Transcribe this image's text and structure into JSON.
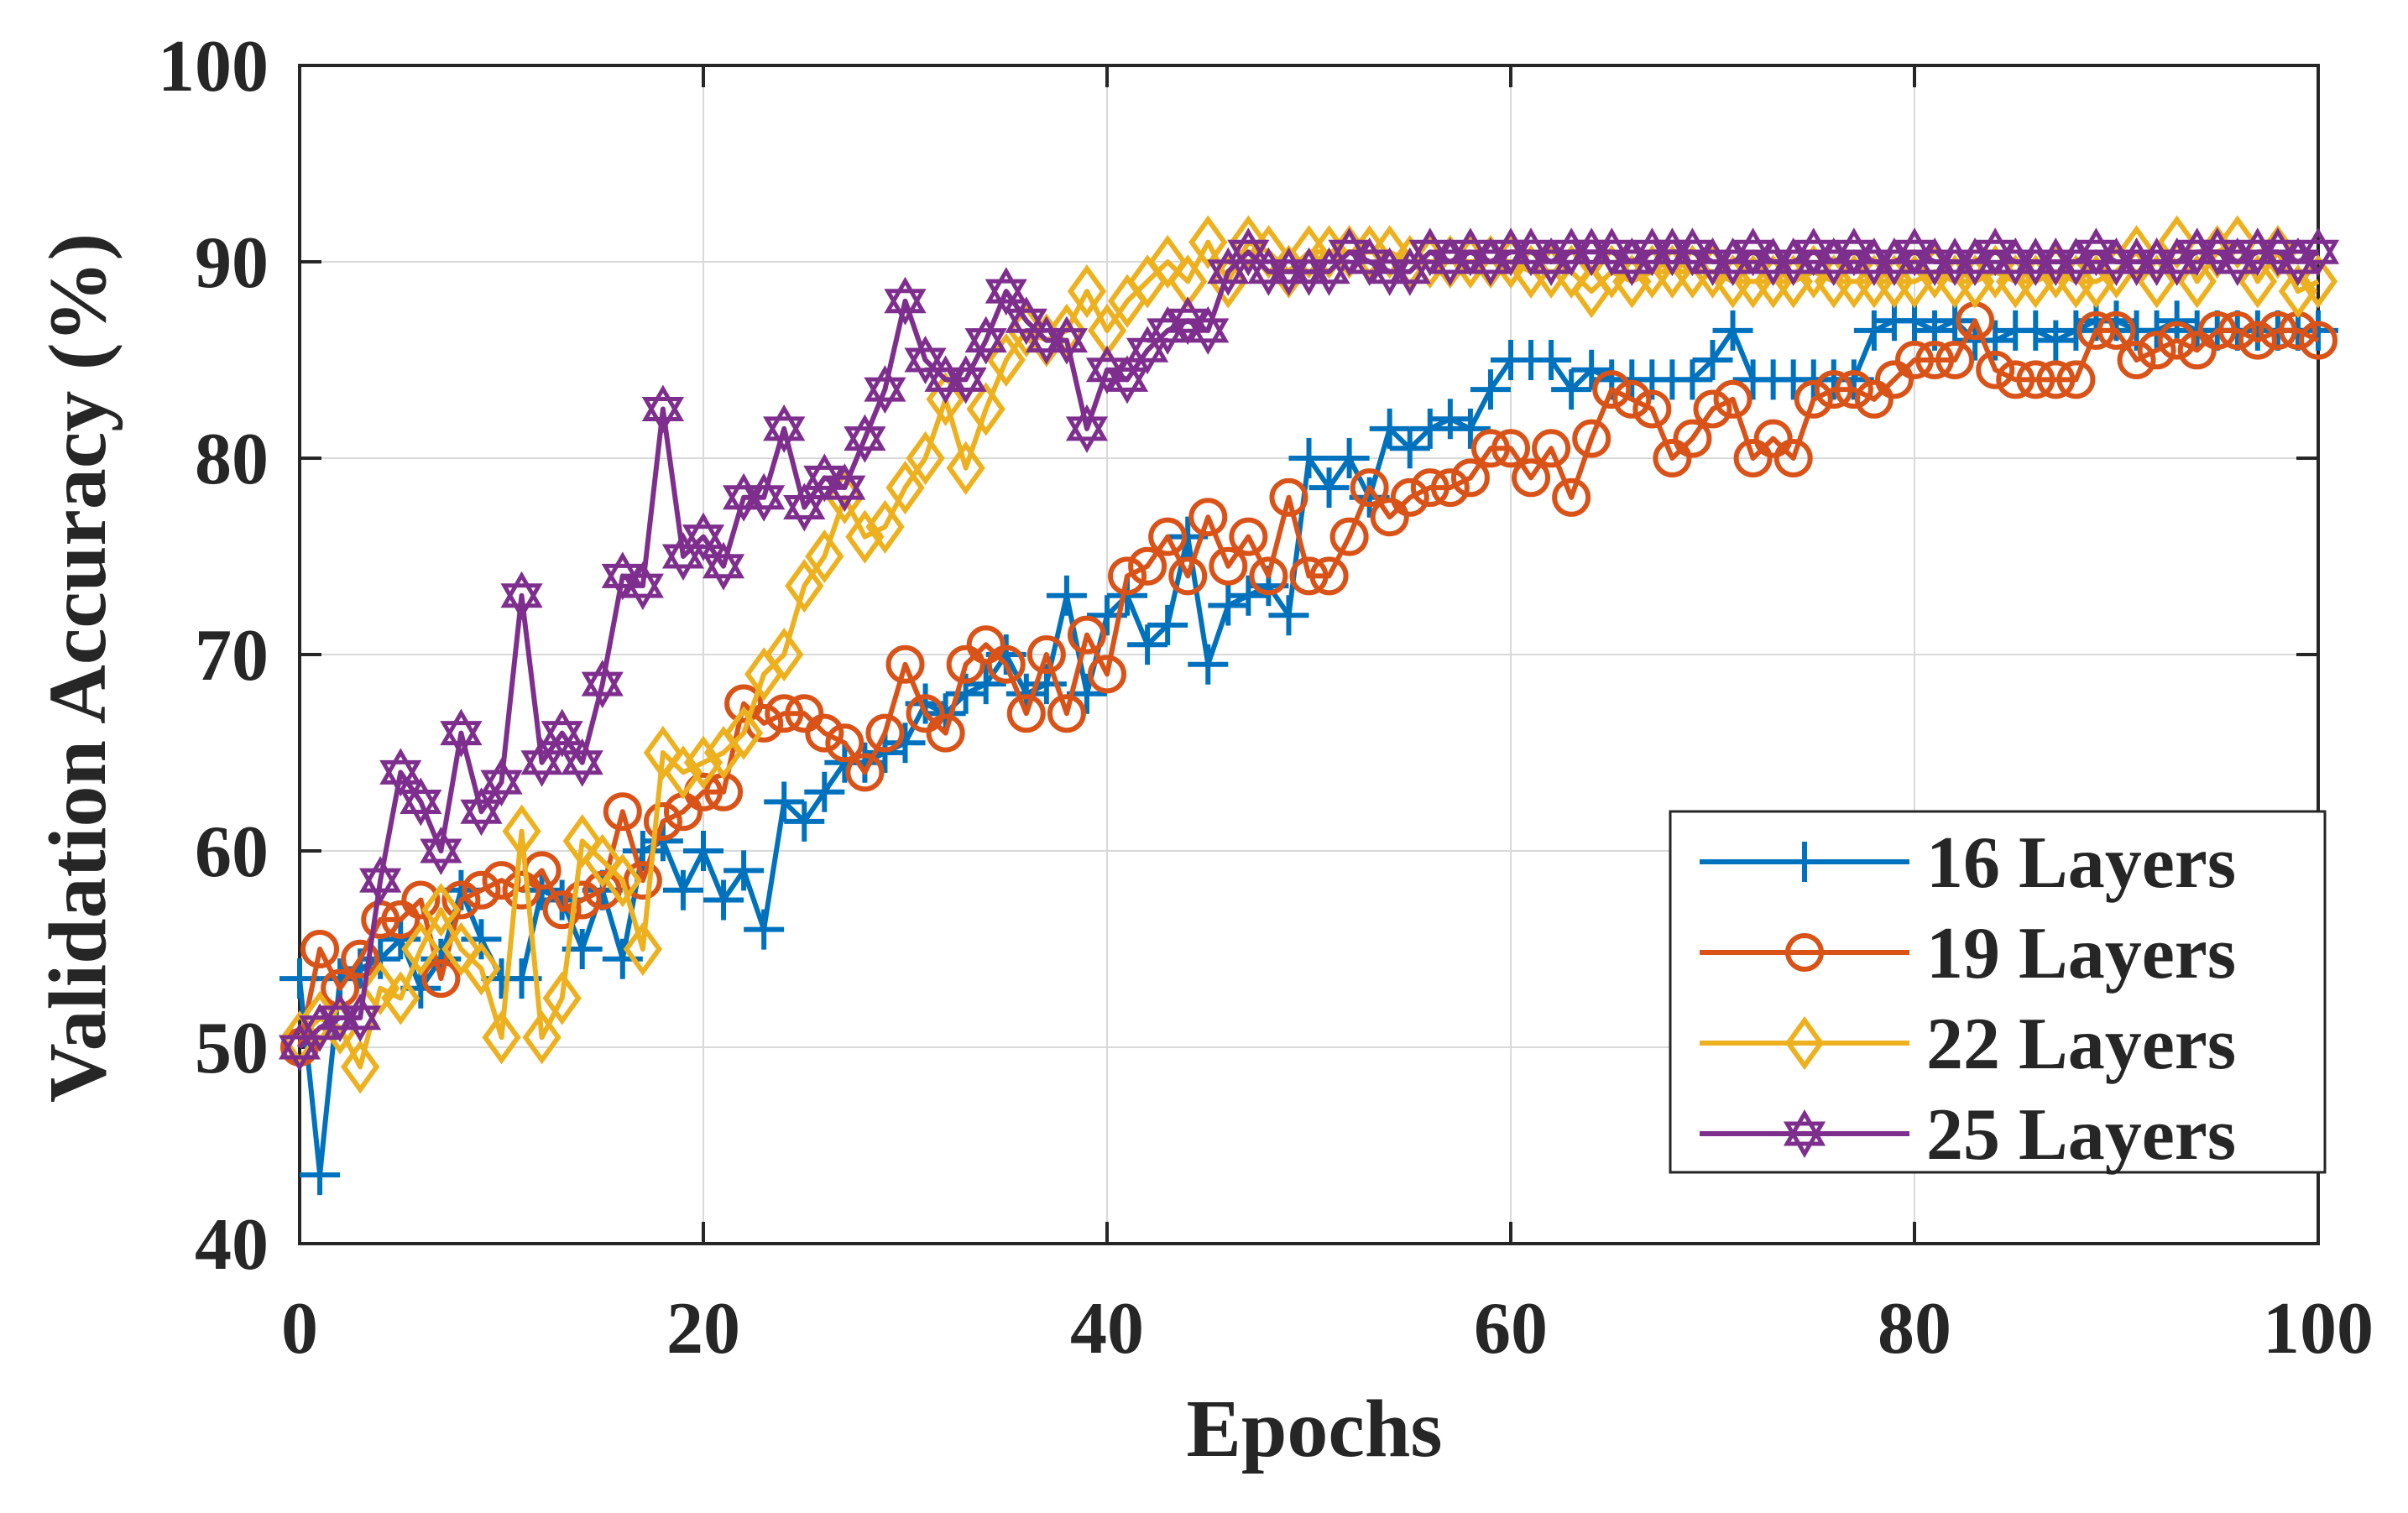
{
  "chart_data": {
    "type": "line",
    "title": "",
    "xlabel": "Epochs",
    "ylabel": "Validation Accuracy (%)",
    "xlim": [
      0,
      100
    ],
    "ylim": [
      40,
      100
    ],
    "xticks": [
      "0",
      "20",
      "40",
      "60",
      "80",
      "100"
    ],
    "yticks": [
      "40",
      "50",
      "60",
      "70",
      "80",
      "90",
      "100"
    ],
    "grid": true,
    "legend_position": "bottom-right",
    "x": [
      0,
      1,
      2,
      3,
      4,
      5,
      6,
      7,
      8,
      9,
      10,
      11,
      12,
      13,
      14,
      15,
      16,
      17,
      18,
      19,
      20,
      21,
      22,
      23,
      24,
      25,
      26,
      27,
      28,
      29,
      30,
      31,
      32,
      33,
      34,
      35,
      36,
      37,
      38,
      39,
      40,
      41,
      42,
      43,
      44,
      45,
      46,
      47,
      48,
      49,
      50,
      51,
      52,
      53,
      54,
      55,
      56,
      57,
      58,
      59,
      60,
      61,
      62,
      63,
      64,
      65,
      66,
      67,
      68,
      69,
      70,
      71,
      72,
      73,
      74,
      75,
      76,
      77,
      78,
      79,
      80,
      81,
      82,
      83,
      84,
      85,
      86,
      87,
      88,
      89,
      90,
      91,
      92,
      93,
      94,
      95,
      96,
      97,
      98,
      99,
      100
    ],
    "series": [
      {
        "name": "16 Layers",
        "color": "#0072BD",
        "marker": "plus",
        "values": [
          53.5,
          43.5,
          53.5,
          54.0,
          54.5,
          55.5,
          53.0,
          54.5,
          58.0,
          55.5,
          53.5,
          53.5,
          58.0,
          57.5,
          55.0,
          58.0,
          54.5,
          60.0,
          60.5,
          58.0,
          60.0,
          57.5,
          59.0,
          56.0,
          62.5,
          61.5,
          63.0,
          64.5,
          64.5,
          65.0,
          65.5,
          67.5,
          67.0,
          68.0,
          68.5,
          70.0,
          68.0,
          68.5,
          73.0,
          68.0,
          72.0,
          73.0,
          70.5,
          71.5,
          76.0,
          69.5,
          72.5,
          73.0,
          73.5,
          72.0,
          80.0,
          78.5,
          80.0,
          78.0,
          81.5,
          80.5,
          81.5,
          82.0,
          81.5,
          83.5,
          85.0,
          85.0,
          85.0,
          83.5,
          84.5,
          84.0,
          84.0,
          84.0,
          84.0,
          84.0,
          85.0,
          86.5,
          84.0,
          84.0,
          84.0,
          84.0,
          84.0,
          84.0,
          86.5,
          87.0,
          87.0,
          86.5,
          87.0,
          86.0,
          86.0,
          86.5,
          86.5,
          86.0,
          86.5,
          87.0,
          87.0,
          86.5,
          86.5,
          87.0,
          86.5,
          86.5,
          86.5,
          86.5,
          86.5,
          86.5,
          86.5
        ]
      },
      {
        "name": "19 Layers",
        "color": "#D95319",
        "marker": "circle",
        "values": [
          50.0,
          55.0,
          53.0,
          54.5,
          56.5,
          56.5,
          57.5,
          53.5,
          57.5,
          58.0,
          58.5,
          58.0,
          59.0,
          57.0,
          57.5,
          58.0,
          62.0,
          58.5,
          61.5,
          62.0,
          63.0,
          63.0,
          67.5,
          66.5,
          67.0,
          67.0,
          66.0,
          65.5,
          64.0,
          66.0,
          69.5,
          67.0,
          66.0,
          69.5,
          70.5,
          69.5,
          67.0,
          70.0,
          67.0,
          71.0,
          69.0,
          74.0,
          74.5,
          76.0,
          74.0,
          77.0,
          74.5,
          76.0,
          74.0,
          78.0,
          74.0,
          74.0,
          76.0,
          78.5,
          77.0,
          78.0,
          78.5,
          78.5,
          79.0,
          80.5,
          80.5,
          79.0,
          80.5,
          78.0,
          81.0,
          83.5,
          83.0,
          82.5,
          80.0,
          81.0,
          82.5,
          83.0,
          80.0,
          81.0,
          80.0,
          83.0,
          83.5,
          83.5,
          83.0,
          84.0,
          85.0,
          85.0,
          85.0,
          87.0,
          84.5,
          84.0,
          84.0,
          84.0,
          84.0,
          86.5,
          86.5,
          85.0,
          85.5,
          86.0,
          85.5,
          86.5,
          86.5,
          86.0,
          86.5,
          86.5,
          86.0
        ]
      },
      {
        "name": "22 Layers",
        "color": "#EDB120",
        "marker": "diamond",
        "values": [
          50.5,
          51.5,
          51.0,
          49.0,
          53.0,
          52.5,
          55.0,
          57.0,
          55.0,
          54.0,
          50.5,
          61.0,
          50.5,
          52.5,
          60.5,
          59.5,
          58.5,
          55.0,
          65.0,
          64.0,
          64.5,
          65.0,
          66.0,
          69.0,
          70.0,
          73.5,
          75.0,
          78.0,
          76.0,
          76.5,
          78.5,
          80.0,
          83.0,
          79.5,
          82.5,
          85.0,
          86.5,
          86.0,
          86.5,
          88.5,
          86.5,
          88.0,
          89.0,
          90.0,
          89.0,
          91.0,
          89.0,
          91.0,
          90.5,
          89.5,
          90.5,
          90.5,
          90.5,
          90.5,
          90.5,
          90.0,
          90.0,
          90.0,
          90.0,
          90.0,
          90.0,
          89.5,
          89.5,
          89.5,
          88.5,
          89.5,
          89.0,
          89.5,
          89.5,
          89.5,
          89.5,
          89.0,
          89.0,
          89.0,
          89.0,
          89.5,
          89.0,
          89.0,
          89.0,
          89.0,
          89.0,
          89.5,
          89.0,
          89.0,
          89.5,
          89.0,
          89.0,
          89.5,
          89.0,
          89.0,
          89.5,
          90.5,
          89.0,
          91.0,
          89.0,
          90.5,
          91.0,
          89.0,
          90.5,
          88.5,
          89.0
        ]
      },
      {
        "name": "25 Layers",
        "color": "#7E2F8E",
        "marker": "hexagram",
        "values": [
          50.0,
          51.0,
          51.5,
          51.5,
          58.5,
          64.0,
          62.5,
          60.0,
          66.0,
          62.0,
          63.5,
          73.0,
          64.5,
          66.0,
          64.5,
          68.5,
          74.0,
          73.5,
          82.5,
          75.0,
          76.0,
          74.5,
          78.0,
          78.0,
          81.5,
          77.5,
          79.0,
          78.5,
          81.0,
          83.5,
          88.0,
          85.0,
          84.0,
          84.0,
          86.0,
          88.5,
          87.0,
          86.0,
          86.0,
          81.5,
          84.5,
          84.0,
          85.5,
          86.5,
          87.0,
          86.5,
          89.5,
          90.5,
          89.5,
          89.5,
          89.5,
          89.5,
          90.5,
          90.0,
          89.5,
          89.5,
          90.5,
          90.0,
          90.5,
          90.0,
          90.5,
          90.5,
          90.0,
          90.5,
          90.5,
          90.5,
          90.0,
          90.5,
          90.5,
          90.5,
          90.0,
          90.0,
          90.5,
          90.0,
          90.0,
          90.5,
          90.0,
          90.5,
          90.0,
          90.0,
          90.5,
          90.0,
          90.0,
          90.0,
          90.5,
          90.0,
          90.0,
          90.0,
          90.0,
          90.5,
          90.0,
          90.0,
          90.0,
          90.0,
          90.5,
          90.5,
          90.0,
          90.5,
          90.5,
          90.0,
          90.5
        ]
      }
    ]
  }
}
